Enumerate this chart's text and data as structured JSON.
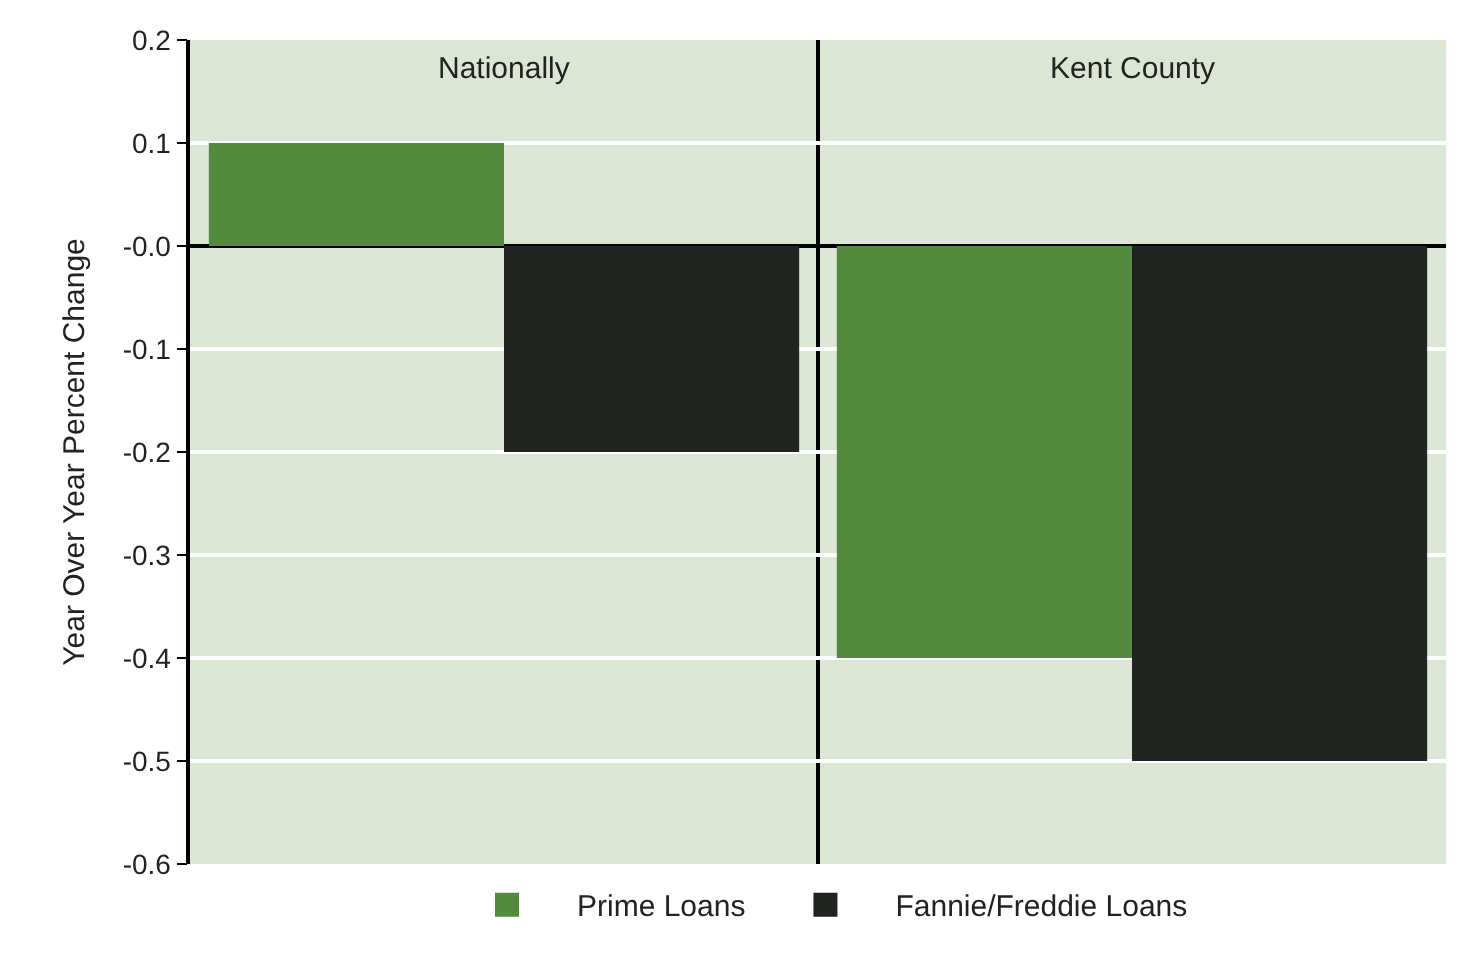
{
  "chart_data": {
    "type": "bar",
    "ylabel": "Year Over Year Percent Change",
    "categories": [
      "Nationally",
      "Kent County"
    ],
    "series": [
      {
        "name": "Prime Loans",
        "color": "#548a3e",
        "values": [
          0.1,
          -0.4
        ]
      },
      {
        "name": "Fannie/Freddie Loans",
        "color": "#222421",
        "values": [
          -0.2,
          -0.5
        ]
      }
    ],
    "ylim": [
      -0.6,
      0.2
    ],
    "yticks": [
      0.2,
      0.1,
      {
        "value": 0,
        "label": "-0.0"
      },
      -0.1,
      -0.2,
      -0.3,
      -0.4,
      -0.5,
      -0.6
    ],
    "grid": true,
    "legend": "bottom"
  }
}
